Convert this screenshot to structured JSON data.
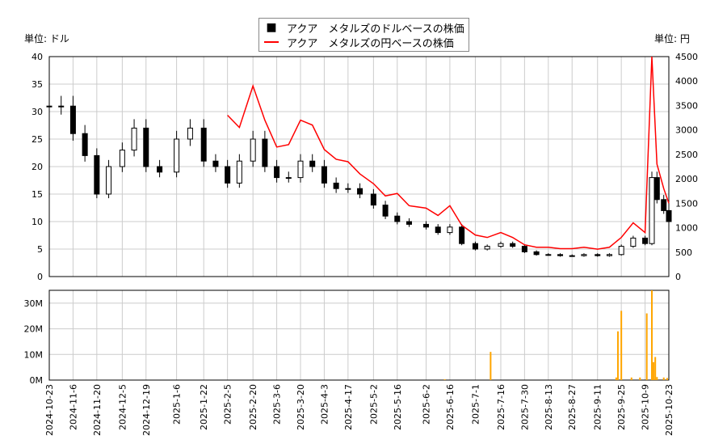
{
  "legend": {
    "usd": "アクア　メタルズのドルベースの株価",
    "jpy": "アクア　メタルズの円ベースの株価"
  },
  "units": {
    "left": "単位: ドル",
    "right": "単位: 円"
  },
  "colors": {
    "usd": "#000000",
    "jpy": "#ff0000",
    "volume": "#ffa500",
    "grid": "#cccccc"
  },
  "chart_data": [
    {
      "type": "line",
      "title": "",
      "ylim_left": [
        0,
        40
      ],
      "ylim_right": [
        0,
        4500
      ],
      "left_ticks": [
        "0",
        "5",
        "10",
        "15",
        "20",
        "25",
        "30",
        "35",
        "40"
      ],
      "right_ticks": [
        "0",
        "500",
        "1000",
        "1500",
        "2000",
        "2500",
        "3000",
        "3500",
        "4000",
        "4500"
      ],
      "grid": true,
      "legend_position": "top-center",
      "x_ticks": [
        "2024-10-23",
        "2024-11-6",
        "2024-11-20",
        "2024-12-5",
        "2024-12-19",
        "2025-1-6",
        "2025-1-22",
        "2025-2-5",
        "2025-2-20",
        "2025-3-6",
        "2025-3-20",
        "2025-4-3",
        "2025-4-17",
        "2025-5-2",
        "2025-5-16",
        "2025-6-2",
        "2025-6-16",
        "2025-7-1",
        "2025-7-16",
        "2025-7-30",
        "2025-8-13",
        "2025-8-27",
        "2025-9-11",
        "2025-9-25",
        "2025-10-9",
        "2025-10-23"
      ],
      "series": [
        {
          "name": "アクア　メタルズのドルベースの株価",
          "kind": "candle",
          "values": [
            [
              "2024-10-23",
              31
            ],
            [
              "2024-10-30",
              31
            ],
            [
              "2024-11-6",
              26
            ],
            [
              "2024-11-13",
              22
            ],
            [
              "2024-11-20",
              15
            ],
            [
              "2024-11-27",
              20
            ],
            [
              "2024-12-5",
              23
            ],
            [
              "2024-12-12",
              27
            ],
            [
              "2024-12-19",
              20
            ],
            [
              "2024-12-27",
              19
            ],
            [
              "2025-1-6",
              25
            ],
            [
              "2025-1-14",
              27
            ],
            [
              "2025-1-22",
              21
            ],
            [
              "2025-1-29",
              20
            ],
            [
              "2025-2-5",
              17
            ],
            [
              "2025-2-12",
              21
            ],
            [
              "2025-2-20",
              25
            ],
            [
              "2025-2-27",
              20
            ],
            [
              "2025-3-6",
              18
            ],
            [
              "2025-3-13",
              18
            ],
            [
              "2025-3-20",
              21
            ],
            [
              "2025-3-27",
              20
            ],
            [
              "2025-4-3",
              17
            ],
            [
              "2025-4-10",
              16
            ],
            [
              "2025-4-17",
              16
            ],
            [
              "2025-4-24",
              15
            ],
            [
              "2025-5-2",
              13
            ],
            [
              "2025-5-9",
              11
            ],
            [
              "2025-5-16",
              10
            ],
            [
              "2025-5-23",
              9.5
            ],
            [
              "2025-6-2",
              9
            ],
            [
              "2025-6-9",
              8
            ],
            [
              "2025-6-16",
              9
            ],
            [
              "2025-6-23",
              6
            ],
            [
              "2025-7-1",
              5
            ],
            [
              "2025-7-8",
              5.5
            ],
            [
              "2025-7-16",
              6
            ],
            [
              "2025-7-23",
              5.5
            ],
            [
              "2025-7-30",
              4.5
            ],
            [
              "2025-8-6",
              4
            ],
            [
              "2025-8-13",
              4
            ],
            [
              "2025-8-20",
              3.8
            ],
            [
              "2025-8-27",
              3.8
            ],
            [
              "2025-9-3",
              4
            ],
            [
              "2025-9-11",
              3.8
            ],
            [
              "2025-9-18",
              4
            ],
            [
              "2025-9-25",
              5.5
            ],
            [
              "2025-10-2",
              7
            ],
            [
              "2025-10-9",
              6
            ],
            [
              "2025-10-13",
              18
            ],
            [
              "2025-10-16",
              14
            ],
            [
              "2025-10-20",
              12
            ],
            [
              "2025-10-23",
              10
            ]
          ]
        },
        {
          "name": "アクア　メタルズの円ベースの株価",
          "kind": "line",
          "values": [
            [
              "2025-2-5",
              3300
            ],
            [
              "2025-2-12",
              3050
            ],
            [
              "2025-2-20",
              3900
            ],
            [
              "2025-2-27",
              3200
            ],
            [
              "2025-3-6",
              2650
            ],
            [
              "2025-3-13",
              2700
            ],
            [
              "2025-3-20",
              3200
            ],
            [
              "2025-3-27",
              3100
            ],
            [
              "2025-4-3",
              2600
            ],
            [
              "2025-4-10",
              2400
            ],
            [
              "2025-4-17",
              2350
            ],
            [
              "2025-4-24",
              2100
            ],
            [
              "2025-5-2",
              1900
            ],
            [
              "2025-5-9",
              1650
            ],
            [
              "2025-5-16",
              1700
            ],
            [
              "2025-5-23",
              1450
            ],
            [
              "2025-6-2",
              1400
            ],
            [
              "2025-6-9",
              1250
            ],
            [
              "2025-6-16",
              1450
            ],
            [
              "2025-6-23",
              1050
            ],
            [
              "2025-7-1",
              850
            ],
            [
              "2025-7-8",
              800
            ],
            [
              "2025-7-16",
              900
            ],
            [
              "2025-7-23",
              800
            ],
            [
              "2025-7-30",
              650
            ],
            [
              "2025-8-6",
              600
            ],
            [
              "2025-8-13",
              600
            ],
            [
              "2025-8-20",
              570
            ],
            [
              "2025-8-27",
              570
            ],
            [
              "2025-9-3",
              600
            ],
            [
              "2025-9-11",
              560
            ],
            [
              "2025-9-18",
              600
            ],
            [
              "2025-9-25",
              800
            ],
            [
              "2025-10-2",
              1100
            ],
            [
              "2025-10-9",
              900
            ],
            [
              "2025-10-13",
              4500
            ],
            [
              "2025-10-16",
              2300
            ],
            [
              "2025-10-20",
              1800
            ],
            [
              "2025-10-23",
              1500
            ]
          ]
        }
      ]
    },
    {
      "type": "bar",
      "ylim": [
        0,
        35000000
      ],
      "y_ticks": [
        "0M",
        "10M",
        "20M",
        "30M"
      ],
      "values": [
        [
          "2025-6-13",
          300000
        ],
        [
          "2025-7-10",
          11000000
        ],
        [
          "2025-9-22",
          1000000
        ],
        [
          "2025-9-23",
          19000000
        ],
        [
          "2025-9-25",
          27000000
        ],
        [
          "2025-10-1",
          1000000
        ],
        [
          "2025-10-6",
          1000000
        ],
        [
          "2025-10-10",
          26000000
        ],
        [
          "2025-10-13",
          35000000
        ],
        [
          "2025-10-14",
          7000000
        ],
        [
          "2025-10-15",
          9000000
        ],
        [
          "2025-10-16",
          1200000
        ],
        [
          "2025-10-20",
          1000000
        ],
        [
          "2025-10-22",
          800000
        ]
      ]
    }
  ]
}
